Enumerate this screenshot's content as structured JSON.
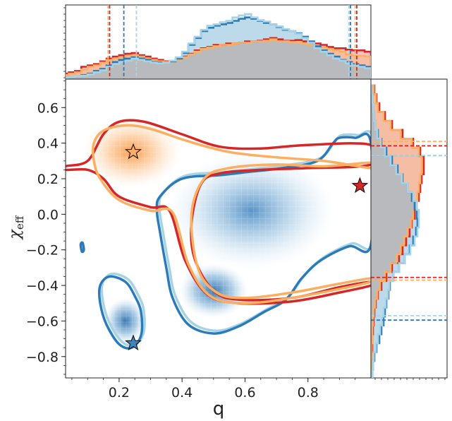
{
  "chart_data": {
    "type": "scatter",
    "title": "",
    "xlabel": "q",
    "ylabel_main": "χ",
    "ylabel_sub": "eff",
    "xlim": [
      0.03,
      1.0
    ],
    "ylim": [
      -0.92,
      0.76
    ],
    "xticks": [
      0.2,
      0.4,
      0.6,
      0.8
    ],
    "xtick_labels": [
      "0.2",
      "0.4",
      "0.6",
      "0.8"
    ],
    "yticks": [
      0.6,
      0.4,
      0.2,
      0.0,
      -0.2,
      -0.4,
      -0.6,
      -0.8
    ],
    "ytick_labels": [
      "0.6",
      "0.4",
      "0.2",
      "0.0",
      "−0.2",
      "−0.4",
      "−0.6",
      "−0.8"
    ],
    "colors": {
      "red": "#d62728",
      "orange": "#fdae61",
      "darkblue": "#2b7bba",
      "lightblue": "#a6d4e6",
      "overlap": "#c4b6b8"
    },
    "series": [
      {
        "name": "orange-density-peak",
        "color": "#fdae61",
        "kind": "density",
        "center": [
          0.24,
          0.35
        ],
        "spread": [
          0.07,
          0.09
        ]
      },
      {
        "name": "blue-density-main",
        "color": "#2b7bba",
        "kind": "density",
        "center": [
          0.62,
          0.02
        ],
        "spread": [
          0.12,
          0.15
        ]
      },
      {
        "name": "blue-density-low",
        "color": "#2b7bba",
        "kind": "density",
        "center": [
          0.5,
          -0.43
        ],
        "spread": [
          0.05,
          0.07
        ]
      },
      {
        "name": "blue-density-island",
        "color": "#2b7bba",
        "kind": "density",
        "center": [
          0.22,
          -0.6
        ],
        "spread": [
          0.03,
          0.06
        ]
      }
    ],
    "contours": [
      {
        "name": "red-contour",
        "color": "#d62728",
        "points": [
          [
            0.03,
            0.27
          ],
          [
            0.1,
            0.3
          ],
          [
            0.15,
            0.45
          ],
          [
            0.2,
            0.52
          ],
          [
            0.28,
            0.52
          ],
          [
            0.4,
            0.45
          ],
          [
            0.52,
            0.38
          ],
          [
            0.65,
            0.37
          ],
          [
            0.8,
            0.39
          ],
          [
            1.0,
            0.39
          ],
          [
            1.0,
            0.28
          ],
          [
            0.8,
            0.26
          ],
          [
            0.65,
            0.25
          ],
          [
            0.52,
            0.23
          ],
          [
            0.46,
            0.17
          ],
          [
            0.43,
            -0.05
          ],
          [
            0.44,
            -0.25
          ],
          [
            0.5,
            -0.43
          ],
          [
            0.58,
            -0.48
          ],
          [
            0.75,
            -0.47
          ],
          [
            0.9,
            -0.41
          ],
          [
            1.0,
            -0.38
          ],
          [
            1.0,
            -0.4
          ],
          [
            0.9,
            -0.44
          ],
          [
            0.75,
            -0.49
          ],
          [
            0.58,
            -0.5
          ],
          [
            0.48,
            -0.45
          ],
          [
            0.41,
            -0.26
          ],
          [
            0.36,
            0.02
          ],
          [
            0.3,
            0.04
          ],
          [
            0.2,
            0.1
          ],
          [
            0.15,
            0.2
          ],
          [
            0.1,
            0.25
          ],
          [
            0.03,
            0.25
          ]
        ]
      },
      {
        "name": "orange-contour",
        "color": "#fdae61",
        "points": [
          [
            0.12,
            0.4
          ],
          [
            0.15,
            0.47
          ],
          [
            0.22,
            0.5
          ],
          [
            0.3,
            0.48
          ],
          [
            0.42,
            0.41
          ],
          [
            0.55,
            0.35
          ],
          [
            0.7,
            0.32
          ],
          [
            0.85,
            0.3
          ],
          [
            1.0,
            0.26
          ],
          [
            1.0,
            0.29
          ],
          [
            0.85,
            0.27
          ],
          [
            0.7,
            0.28
          ],
          [
            0.55,
            0.26
          ],
          [
            0.47,
            0.2
          ],
          [
            0.43,
            0.0
          ],
          [
            0.45,
            -0.3
          ],
          [
            0.51,
            -0.44
          ],
          [
            0.6,
            -0.47
          ],
          [
            0.75,
            -0.44
          ],
          [
            0.9,
            -0.39
          ],
          [
            1.0,
            -0.36
          ],
          [
            1.0,
            -0.38
          ],
          [
            0.9,
            -0.42
          ],
          [
            0.75,
            -0.47
          ],
          [
            0.6,
            -0.5
          ],
          [
            0.49,
            -0.46
          ],
          [
            0.42,
            -0.28
          ],
          [
            0.37,
            0.01
          ],
          [
            0.3,
            0.02
          ],
          [
            0.2,
            0.08
          ],
          [
            0.14,
            0.2
          ],
          [
            0.12,
            0.3
          ]
        ]
      },
      {
        "name": "blue-contour-main",
        "color": "#2b7bba",
        "points": [
          [
            0.33,
            0.1
          ],
          [
            0.4,
            0.2
          ],
          [
            0.52,
            0.22
          ],
          [
            0.62,
            0.24
          ],
          [
            0.72,
            0.26
          ],
          [
            0.83,
            0.3
          ],
          [
            0.88,
            0.4
          ],
          [
            0.9,
            0.43
          ],
          [
            0.95,
            0.43
          ],
          [
            1.0,
            0.4
          ],
          [
            1.0,
            -0.17
          ],
          [
            0.93,
            -0.18
          ],
          [
            0.84,
            -0.26
          ],
          [
            0.78,
            -0.36
          ],
          [
            0.73,
            -0.48
          ],
          [
            0.66,
            -0.55
          ],
          [
            0.58,
            -0.63
          ],
          [
            0.5,
            -0.67
          ],
          [
            0.42,
            -0.62
          ],
          [
            0.37,
            -0.47
          ],
          [
            0.35,
            -0.3
          ],
          [
            0.33,
            -0.1
          ],
          [
            0.32,
            0.02
          ]
        ]
      },
      {
        "name": "blue-contour-island",
        "color": "#2b7bba",
        "points": [
          [
            0.14,
            -0.4
          ],
          [
            0.17,
            -0.35
          ],
          [
            0.22,
            -0.38
          ],
          [
            0.25,
            -0.46
          ],
          [
            0.27,
            -0.55
          ],
          [
            0.27,
            -0.68
          ],
          [
            0.24,
            -0.75
          ],
          [
            0.2,
            -0.73
          ],
          [
            0.16,
            -0.62
          ],
          [
            0.14,
            -0.5
          ]
        ]
      },
      {
        "name": "blue-contour-tiny",
        "color": "#2b7bba",
        "points": [
          [
            0.078,
            -0.17
          ],
          [
            0.084,
            -0.16
          ],
          [
            0.088,
            -0.2
          ],
          [
            0.082,
            -0.21
          ]
        ]
      }
    ],
    "markers": [
      {
        "name": "orange-star",
        "x": 0.245,
        "y": 0.35,
        "fill": "#fdae61"
      },
      {
        "name": "blue-star",
        "x": 0.245,
        "y": -0.725,
        "fill": "#3a86c0"
      },
      {
        "name": "red-star",
        "x": 0.965,
        "y": 0.16,
        "fill": "#d62728"
      }
    ],
    "top_marginal": {
      "name": "q-marginal",
      "x": [
        0.03,
        0.05,
        0.07,
        0.09,
        0.11,
        0.13,
        0.15,
        0.17,
        0.19,
        0.21,
        0.23,
        0.25,
        0.27,
        0.29,
        0.31,
        0.33,
        0.35,
        0.37,
        0.39,
        0.41,
        0.43,
        0.45,
        0.47,
        0.49,
        0.51,
        0.53,
        0.55,
        0.57,
        0.59,
        0.61,
        0.63,
        0.65,
        0.67,
        0.69,
        0.71,
        0.73,
        0.75,
        0.77,
        0.79,
        0.81,
        0.83,
        0.85,
        0.87,
        0.89,
        0.91,
        0.93,
        0.95,
        0.97,
        0.99
      ],
      "series": [
        {
          "name": "red",
          "color": "#d62728",
          "values": [
            0.08,
            0.1,
            0.12,
            0.18,
            0.2,
            0.22,
            0.26,
            0.3,
            0.33,
            0.35,
            0.37,
            0.38,
            0.35,
            0.33,
            0.3,
            0.28,
            0.26,
            0.27,
            0.3,
            0.33,
            0.37,
            0.42,
            0.45,
            0.47,
            0.5,
            0.5,
            0.52,
            0.52,
            0.53,
            0.55,
            0.55,
            0.56,
            0.58,
            0.6,
            0.58,
            0.56,
            0.56,
            0.57,
            0.55,
            0.53,
            0.52,
            0.5,
            0.47,
            0.45,
            0.45,
            0.43,
            0.42,
            0.42,
            0.4
          ]
        },
        {
          "name": "orange",
          "color": "#fdae61",
          "values": [
            0.06,
            0.08,
            0.1,
            0.14,
            0.18,
            0.2,
            0.24,
            0.28,
            0.3,
            0.32,
            0.34,
            0.35,
            0.33,
            0.3,
            0.28,
            0.26,
            0.25,
            0.26,
            0.28,
            0.32,
            0.36,
            0.4,
            0.44,
            0.46,
            0.48,
            0.5,
            0.5,
            0.52,
            0.53,
            0.53,
            0.55,
            0.55,
            0.56,
            0.58,
            0.55,
            0.55,
            0.54,
            0.54,
            0.52,
            0.5,
            0.48,
            0.46,
            0.44,
            0.42,
            0.4,
            0.36,
            0.34,
            0.34,
            0.33
          ]
        },
        {
          "name": "darkblue",
          "color": "#2b7bba",
          "values": [
            0.02,
            0.03,
            0.04,
            0.06,
            0.08,
            0.12,
            0.15,
            0.2,
            0.25,
            0.28,
            0.3,
            0.32,
            0.3,
            0.28,
            0.25,
            0.24,
            0.24,
            0.26,
            0.3,
            0.38,
            0.5,
            0.6,
            0.7,
            0.75,
            0.78,
            0.8,
            0.82,
            0.85,
            0.88,
            0.9,
            0.88,
            0.85,
            0.82,
            0.8,
            0.76,
            0.72,
            0.7,
            0.67,
            0.62,
            0.55,
            0.48,
            0.42,
            0.37,
            0.33,
            0.28,
            0.25,
            0.22,
            0.2,
            0.18
          ]
        },
        {
          "name": "lightblue",
          "color": "#a6d4e6",
          "values": [
            0.02,
            0.03,
            0.04,
            0.05,
            0.07,
            0.1,
            0.13,
            0.18,
            0.22,
            0.25,
            0.27,
            0.3,
            0.28,
            0.26,
            0.24,
            0.23,
            0.24,
            0.27,
            0.32,
            0.4,
            0.52,
            0.62,
            0.72,
            0.78,
            0.8,
            0.83,
            0.85,
            0.9,
            0.93,
            0.95,
            0.9,
            0.86,
            0.84,
            0.8,
            0.77,
            0.73,
            0.7,
            0.66,
            0.6,
            0.53,
            0.45,
            0.4,
            0.35,
            0.3,
            0.27,
            0.23,
            0.2,
            0.18,
            0.16
          ]
        }
      ],
      "credible_intervals": [
        {
          "color": "#fdae61",
          "values": [
            0.165,
            0.95
          ]
        },
        {
          "color": "#d62728",
          "values": [
            0.17,
            0.955
          ]
        },
        {
          "color": "#2b7bba",
          "values": [
            0.215,
            0.935
          ]
        },
        {
          "color": "#a6d4e6",
          "values": [
            0.255,
            0.93
          ]
        }
      ]
    },
    "right_marginal": {
      "name": "chi-marginal",
      "y": [
        0.7,
        0.65,
        0.6,
        0.55,
        0.5,
        0.45,
        0.4,
        0.35,
        0.3,
        0.25,
        0.2,
        0.15,
        0.1,
        0.05,
        0.0,
        -0.05,
        -0.1,
        -0.15,
        -0.2,
        -0.25,
        -0.3,
        -0.35,
        -0.4,
        -0.45,
        -0.5,
        -0.55,
        -0.6,
        -0.65,
        -0.7,
        -0.75,
        -0.8,
        -0.85,
        -0.9
      ],
      "series": [
        {
          "name": "red",
          "color": "#d62728",
          "values": [
            0.05,
            0.08,
            0.12,
            0.2,
            0.3,
            0.45,
            0.6,
            0.7,
            0.75,
            0.75,
            0.72,
            0.7,
            0.68,
            0.65,
            0.62,
            0.58,
            0.55,
            0.5,
            0.45,
            0.4,
            0.3,
            0.22,
            0.15,
            0.1,
            0.07,
            0.05,
            0.04,
            0.03,
            0.02,
            0.02,
            0.01,
            0.01,
            0.01
          ]
        },
        {
          "name": "orange",
          "color": "#fdae61",
          "values": [
            0.04,
            0.07,
            0.1,
            0.18,
            0.28,
            0.42,
            0.58,
            0.68,
            0.72,
            0.72,
            0.7,
            0.68,
            0.66,
            0.64,
            0.6,
            0.57,
            0.52,
            0.47,
            0.42,
            0.36,
            0.28,
            0.2,
            0.13,
            0.09,
            0.06,
            0.04,
            0.03,
            0.02,
            0.02,
            0.01,
            0.01,
            0.01,
            0.01
          ]
        },
        {
          "name": "darkblue",
          "color": "#2b7bba",
          "values": [
            0.01,
            0.02,
            0.03,
            0.04,
            0.06,
            0.1,
            0.15,
            0.22,
            0.3,
            0.38,
            0.45,
            0.52,
            0.58,
            0.62,
            0.65,
            0.66,
            0.64,
            0.6,
            0.55,
            0.48,
            0.4,
            0.32,
            0.27,
            0.25,
            0.22,
            0.2,
            0.18,
            0.15,
            0.12,
            0.08,
            0.05,
            0.03,
            0.02
          ]
        },
        {
          "name": "lightblue",
          "color": "#a6d4e6",
          "values": [
            0.01,
            0.02,
            0.03,
            0.04,
            0.06,
            0.09,
            0.14,
            0.2,
            0.28,
            0.36,
            0.44,
            0.52,
            0.6,
            0.65,
            0.68,
            0.68,
            0.66,
            0.62,
            0.56,
            0.48,
            0.4,
            0.32,
            0.26,
            0.24,
            0.21,
            0.18,
            0.16,
            0.13,
            0.1,
            0.07,
            0.04,
            0.03,
            0.02
          ]
        }
      ],
      "credible_intervals": [
        {
          "color": "#fdae61",
          "values": [
            0.41,
            -0.37
          ]
        },
        {
          "color": "#d62728",
          "values": [
            0.385,
            -0.355
          ]
        },
        {
          "color": "#2b7bba",
          "values": [
            0.33,
            -0.595
          ]
        },
        {
          "color": "#a6d4e6",
          "values": [
            0.33,
            -0.57
          ]
        }
      ]
    }
  }
}
